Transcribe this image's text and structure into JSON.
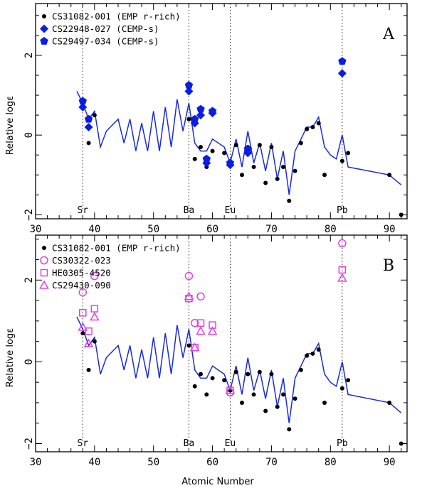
{
  "chart_data": [
    {
      "type": "scatter",
      "panel_label": "A",
      "xlabel": "",
      "ylabel": "Relative logε",
      "xlim": [
        30,
        93
      ],
      "ylim": [
        -2.1,
        3.3
      ],
      "x_ticks": [
        "30",
        "40",
        "50",
        "60",
        "70",
        "80",
        "90"
      ],
      "x_tick_values": [
        30,
        40,
        50,
        60,
        70,
        80,
        90
      ],
      "y_ticks": [
        "−2",
        "0",
        "2"
      ],
      "y_tick_values": [
        -2,
        0,
        2
      ],
      "element_markers": [
        {
          "label": "Sr",
          "x": 38
        },
        {
          "label": "Ba",
          "x": 56
        },
        {
          "label": "Eu",
          "x": 63
        },
        {
          "label": "Pb",
          "x": 82
        }
      ],
      "legend_position": "top-left",
      "line": {
        "color": "#1a2bd6",
        "x": [
          37,
          38,
          39,
          40,
          41,
          42,
          44,
          45,
          46,
          47,
          48,
          49,
          50,
          51,
          52,
          53,
          54,
          55,
          56,
          57,
          58,
          59,
          60,
          62,
          63,
          64,
          65,
          66,
          67,
          68,
          69,
          70,
          71,
          72,
          73,
          74,
          75,
          76,
          77,
          78,
          79,
          80,
          81,
          82,
          83,
          90,
          92
        ],
        "y": [
          1.1,
          0.8,
          0.4,
          0.6,
          -0.3,
          0.1,
          0.4,
          -0.2,
          0.4,
          -0.4,
          0.3,
          -0.4,
          0.6,
          -0.4,
          0.7,
          -0.3,
          0.9,
          0.1,
          0.8,
          -0.2,
          -0.4,
          -0.4,
          -0.1,
          -0.3,
          -0.7,
          -0.1,
          -0.8,
          0.1,
          -0.7,
          -0.2,
          -0.9,
          -0.2,
          -1.1,
          -0.4,
          -1.5,
          -0.4,
          -0.1,
          0.2,
          0.2,
          0.45,
          -0.3,
          -0.5,
          -0.6,
          0.0,
          -0.8,
          -1.0,
          -1.25
        ]
      },
      "series": [
        {
          "name": "CS31082-001 (EMP r-rich)",
          "marker": "circle-filled",
          "color": "#000000",
          "x": [
            38,
            39,
            40,
            56,
            57,
            58,
            59,
            60,
            62,
            63,
            64,
            65,
            66,
            67,
            68,
            69,
            70,
            71,
            72,
            73,
            74,
            75,
            76,
            77,
            78,
            79,
            82,
            83,
            90,
            92
          ],
          "y": [
            0.7,
            -0.2,
            0.5,
            0.4,
            -0.6,
            -0.3,
            -0.8,
            -0.4,
            -0.45,
            -0.7,
            -0.25,
            -1.0,
            -0.3,
            -0.8,
            -0.25,
            -1.2,
            -0.3,
            -1.1,
            -0.8,
            -1.65,
            -0.9,
            -0.2,
            0.15,
            0.2,
            0.3,
            -1.0,
            -0.65,
            -0.45,
            -1.0,
            -2.0
          ]
        },
        {
          "name": "CS22948-027 (CEMP-s)",
          "marker": "diamond-filled",
          "color": "#0a1de0",
          "x": [
            38,
            39,
            56,
            57,
            58,
            59,
            60,
            63,
            66,
            82
          ],
          "y": [
            0.7,
            0.2,
            1.1,
            0.3,
            0.5,
            -0.7,
            0.55,
            -0.75,
            -0.45,
            1.55
          ]
        },
        {
          "name": "CS29497-034 (CEMP-s)",
          "marker": "pentagon-filled",
          "color": "#0a1de0",
          "x": [
            38,
            39,
            56,
            57,
            58,
            59,
            60,
            63,
            66,
            82
          ],
          "y": [
            0.85,
            0.4,
            1.25,
            0.4,
            0.65,
            -0.6,
            0.6,
            -0.7,
            -0.35,
            1.85
          ]
        }
      ]
    },
    {
      "type": "scatter",
      "panel_label": "B",
      "xlabel": "Atomic Number",
      "ylabel": "Relative logε",
      "xlim": [
        30,
        93
      ],
      "ylim": [
        -2.2,
        3.1
      ],
      "x_ticks": [
        "30",
        "40",
        "50",
        "60",
        "70",
        "80",
        "90"
      ],
      "x_tick_values": [
        30,
        40,
        50,
        60,
        70,
        80,
        90
      ],
      "y_ticks": [
        "−2",
        "0",
        "2"
      ],
      "y_tick_values": [
        -2,
        0,
        2
      ],
      "element_markers": [
        {
          "label": "Sr",
          "x": 38
        },
        {
          "label": "Ba",
          "x": 56
        },
        {
          "label": "Eu",
          "x": 63
        },
        {
          "label": "Pb",
          "x": 82
        }
      ],
      "legend_position": "top-left",
      "line": {
        "color": "#1a2bd6",
        "x": [
          37,
          38,
          39,
          40,
          41,
          42,
          44,
          45,
          46,
          47,
          48,
          49,
          50,
          51,
          52,
          53,
          54,
          55,
          56,
          57,
          58,
          59,
          60,
          62,
          63,
          64,
          65,
          66,
          67,
          68,
          69,
          70,
          71,
          72,
          73,
          74,
          75,
          76,
          77,
          78,
          79,
          80,
          81,
          82,
          83,
          90,
          92
        ],
        "y": [
          1.1,
          0.8,
          0.4,
          0.6,
          -0.3,
          0.1,
          0.4,
          -0.2,
          0.4,
          -0.4,
          0.3,
          -0.4,
          0.6,
          -0.4,
          0.7,
          -0.3,
          0.9,
          0.1,
          0.8,
          -0.2,
          -0.4,
          -0.4,
          -0.1,
          -0.3,
          -0.7,
          -0.1,
          -0.8,
          0.1,
          -0.7,
          -0.2,
          -0.9,
          -0.2,
          -1.1,
          -0.4,
          -1.5,
          -0.4,
          -0.1,
          0.2,
          0.2,
          0.45,
          -0.3,
          -0.5,
          -0.6,
          0.0,
          -0.8,
          -1.0,
          -1.25
        ]
      },
      "series": [
        {
          "name": "CS31082-001 (EMP r-rich)",
          "marker": "circle-filled",
          "color": "#000000",
          "x": [
            38,
            39,
            40,
            56,
            57,
            58,
            59,
            60,
            62,
            63,
            64,
            65,
            66,
            67,
            68,
            69,
            70,
            71,
            72,
            73,
            74,
            75,
            76,
            77,
            78,
            79,
            82,
            83,
            90,
            92
          ],
          "y": [
            0.7,
            -0.2,
            0.5,
            0.4,
            -0.6,
            -0.3,
            -0.8,
            -0.4,
            -0.45,
            -0.7,
            -0.25,
            -1.0,
            -0.3,
            -0.8,
            -0.25,
            -1.2,
            -0.3,
            -1.1,
            -0.8,
            -1.65,
            -0.9,
            -0.2,
            0.15,
            0.2,
            0.3,
            -1.0,
            -0.65,
            -0.45,
            -1.0,
            -2.0
          ]
        },
        {
          "name": "CS30322-023",
          "marker": "circle-open",
          "color": "#e23ee8",
          "x": [
            38,
            40,
            56,
            57,
            58,
            63,
            82
          ],
          "y": [
            1.7,
            2.1,
            2.1,
            0.95,
            1.6,
            -0.75,
            2.9
          ]
        },
        {
          "name": "HE0305-4520",
          "marker": "square-open",
          "color": "#e23ee8",
          "x": [
            38,
            39,
            40,
            56,
            57,
            58,
            60,
            63,
            82
          ],
          "y": [
            1.2,
            0.75,
            1.3,
            1.55,
            0.35,
            0.95,
            0.9,
            -0.7,
            2.25
          ]
        },
        {
          "name": "CS29430-090",
          "marker": "triangle-open",
          "color": "#e23ee8",
          "x": [
            38,
            39,
            40,
            56,
            57,
            58,
            60,
            63,
            82
          ],
          "y": [
            0.85,
            0.45,
            1.1,
            1.6,
            0.35,
            0.75,
            0.75,
            -0.7,
            2.05
          ]
        }
      ]
    }
  ]
}
